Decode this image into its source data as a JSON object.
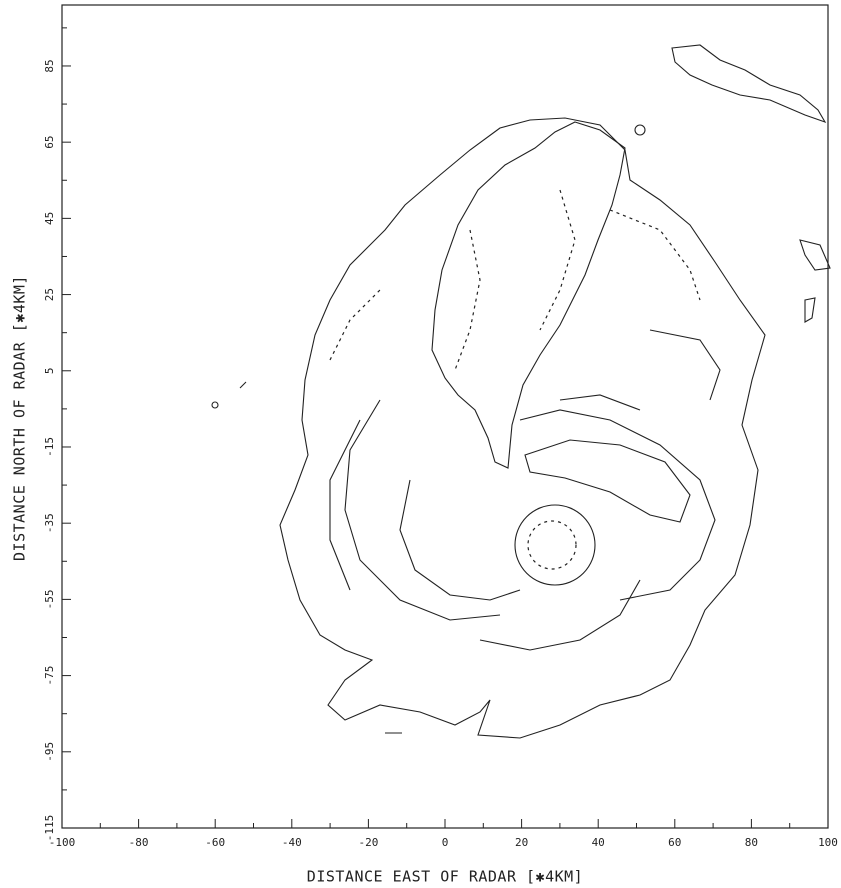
{
  "chart_data": {
    "type": "contour",
    "x_label": "DISTANCE EAST OF RADAR [✱4KM]",
    "y_label": "DISTANCE NORTH OF RADAR [✱4KM]",
    "xlim": [
      -100,
      100
    ],
    "ylim": [
      -115,
      101
    ],
    "xticks": [
      -100,
      -80,
      -60,
      -40,
      -20,
      0,
      20,
      40,
      60,
      80,
      100
    ],
    "yticks": [
      -115,
      -95,
      -75,
      -55,
      -35,
      -15,
      5,
      25,
      45,
      65,
      85
    ],
    "xticks_minor": [
      -90,
      -70,
      -50,
      -30,
      -10,
      10,
      30,
      50,
      70,
      90
    ],
    "yticks_minor": [
      -105,
      -85,
      -65,
      -45,
      -25,
      -5,
      15,
      35,
      55,
      75,
      95
    ]
  }
}
